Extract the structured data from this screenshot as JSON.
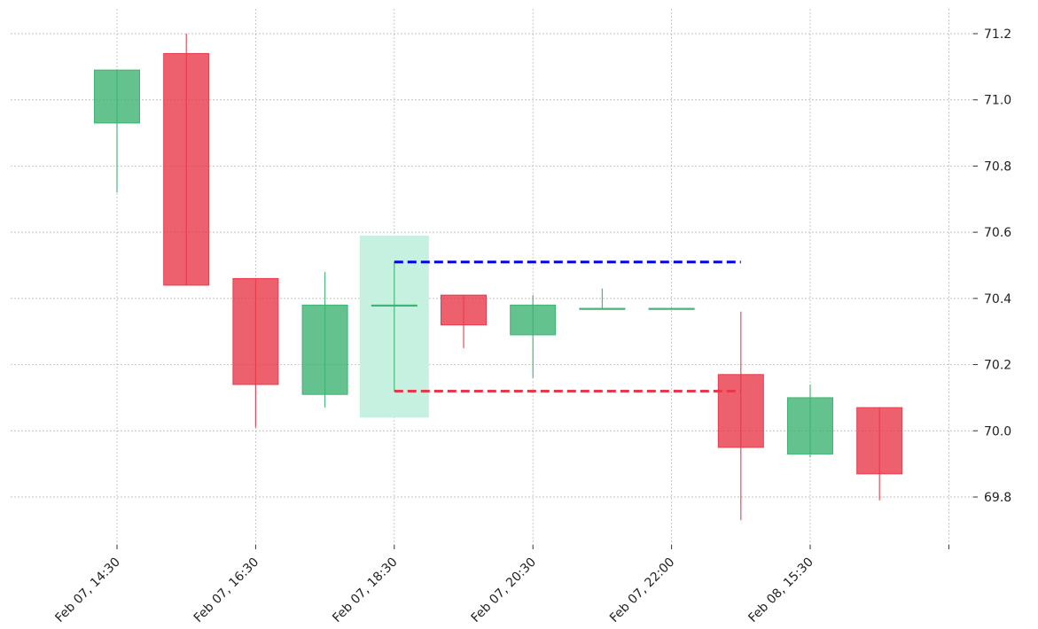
{
  "chart_data": {
    "type": "candlestick",
    "title": "",
    "xlabel": "",
    "ylabel": "",
    "ylim": [
      69.66,
      71.27
    ],
    "yticks": [
      69.8,
      70.0,
      70.2,
      70.4,
      70.6,
      70.8,
      71.0,
      71.2
    ],
    "ytick_labels": [
      "69.8",
      "70.0",
      "70.2",
      "70.4",
      "70.6",
      "70.8",
      "71.0",
      "71.2"
    ],
    "xtick_labels": [
      {
        "at": 0,
        "label": "Feb 07, 14:30"
      },
      {
        "at": 2,
        "label": "Feb 07, 16:30"
      },
      {
        "at": 4,
        "label": "Feb 07, 18:30"
      },
      {
        "at": 6,
        "label": "Feb 07, 20:30"
      },
      {
        "at": 8,
        "label": "Feb 07, 22:00"
      },
      {
        "at": 10,
        "label": "Feb 08, 15:30"
      },
      {
        "at": 12,
        "label": ""
      }
    ],
    "colors": {
      "up": "#3cb371",
      "down": "#e8394a",
      "highlight": "#c6f0e0",
      "resistance": "#0000ee",
      "support": "#e8394a"
    },
    "candles": [
      {
        "open": 70.93,
        "high": 71.09,
        "low": 70.72,
        "close": 71.09
      },
      {
        "open": 71.14,
        "high": 71.2,
        "low": 70.44,
        "close": 70.44
      },
      {
        "open": 70.46,
        "high": 70.46,
        "low": 70.01,
        "close": 70.14
      },
      {
        "open": 70.11,
        "high": 70.48,
        "low": 70.07,
        "close": 70.38
      },
      {
        "open": 70.38,
        "high": 70.51,
        "low": 70.12,
        "close": 70.38
      },
      {
        "open": 70.41,
        "high": 70.41,
        "low": 70.25,
        "close": 70.32
      },
      {
        "open": 70.29,
        "high": 70.41,
        "low": 70.16,
        "close": 70.38
      },
      {
        "open": 70.37,
        "high": 70.43,
        "low": 70.37,
        "close": 70.37
      },
      {
        "open": 70.37,
        "high": 70.37,
        "low": 70.37,
        "close": 70.37
      },
      {
        "open": 70.17,
        "high": 70.36,
        "low": 69.73,
        "close": 69.95
      },
      {
        "open": 69.93,
        "high": 70.14,
        "low": 69.92,
        "close": 70.1
      },
      {
        "open": 70.07,
        "high": 70.07,
        "low": 69.79,
        "close": 69.87
      }
    ],
    "highlight": {
      "index": 4,
      "from": 70.04,
      "to": 70.59
    },
    "resistance_line": {
      "value": 70.51,
      "from_index": 4,
      "to_index": 9
    },
    "support_line": {
      "value": 70.12,
      "from_index": 4,
      "to_index": 9
    }
  }
}
